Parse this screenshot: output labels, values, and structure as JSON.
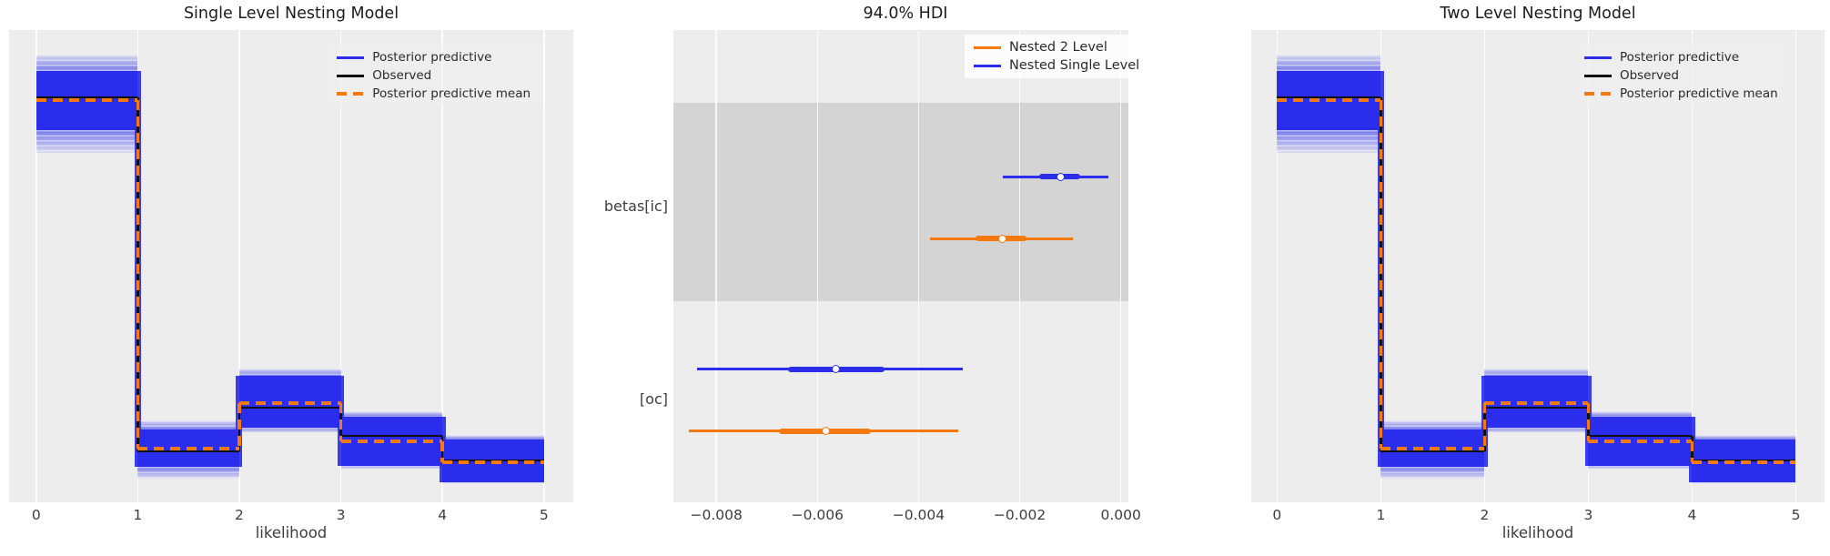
{
  "colors": {
    "posterior_blue": "#2a2eec",
    "mean_orange": "#f5790f",
    "observed_black": "#0f0f0f",
    "axes_bg": "#ededed",
    "shade_band": "#d4d4d4",
    "gridline": "#ffffff"
  },
  "chart_data": [
    {
      "type": "area",
      "subtype": "posterior-predictive-step-histogram",
      "title": "Single Level Nesting Model",
      "xlabel": "likelihood",
      "x_ticks": [
        "0",
        "1",
        "2",
        "3",
        "4",
        "5"
      ],
      "grid": "white-vertical",
      "legend_position": "upper-center-right",
      "legend": [
        {
          "label": "Posterior predictive",
          "style": "solid",
          "color": "#2a2eec"
        },
        {
          "label": "Observed",
          "style": "solid",
          "color": "#0f0f0f"
        },
        {
          "label": "Posterior predictive mean",
          "style": "dashed",
          "color": "#f5790f"
        }
      ],
      "y_axis": "no ticks shown; values below are fractions of axis height",
      "bins": [
        {
          "x0": 0,
          "x1": 1,
          "observed": 0.857,
          "mean": 0.852,
          "band": [
            0.788,
            0.913
          ],
          "band_light": [
            0.74,
            0.948
          ]
        },
        {
          "x0": 1,
          "x1": 2,
          "observed": 0.108,
          "mean": 0.114,
          "band": [
            0.075,
            0.154
          ],
          "band_light": [
            0.05,
            0.173
          ]
        },
        {
          "x0": 2,
          "x1": 3,
          "observed": 0.2,
          "mean": 0.21,
          "band": [
            0.158,
            0.268
          ],
          "band_light": [
            0.148,
            0.283
          ]
        },
        {
          "x0": 3,
          "x1": 4,
          "observed": 0.141,
          "mean": 0.129,
          "band": [
            0.077,
            0.181
          ],
          "band_light": [
            0.071,
            0.193
          ]
        },
        {
          "x0": 4,
          "x1": 5,
          "observed": 0.089,
          "mean": 0.085,
          "band": [
            0.042,
            0.133
          ],
          "band_light": [
            0.04,
            0.143
          ]
        }
      ]
    },
    {
      "type": "forest",
      "title": "94.0% HDI",
      "x_ticks": [
        "−0.008",
        "−0.006",
        "−0.004",
        "−0.002",
        "0.000"
      ],
      "x_tick_values": [
        -0.008,
        -0.006,
        -0.004,
        -0.002,
        0.0
      ],
      "xlim": [
        -0.00885,
        0.00015
      ],
      "grid": "white-vertical",
      "legend_position": "upper-right",
      "legend": [
        {
          "label": "Nested 2 Level",
          "color": "#f5790f"
        },
        {
          "label": "Nested Single Level",
          "color": "#2a2eec"
        }
      ],
      "rows": [
        {
          "label": "betas[ic]",
          "shaded": true,
          "intervals": [
            {
              "series": "Nested Single Level",
              "color": "#2a2eec",
              "hdi": [
                -0.00234,
                -0.00025
              ],
              "quartile": [
                -0.00162,
                -0.00081
              ],
              "median": -0.00119
            },
            {
              "series": "Nested 2 Level",
              "color": "#f5790f",
              "hdi": [
                -0.00378,
                -0.00094
              ],
              "quartile": [
                -0.00288,
                -0.00187
              ],
              "median": -0.00234
            }
          ]
        },
        {
          "label": "[oc]",
          "shaded": false,
          "intervals": [
            {
              "series": "Nested Single Level",
              "color": "#2a2eec",
              "hdi": [
                -0.00838,
                -0.00313
              ],
              "quartile": [
                -0.00658,
                -0.00468
              ],
              "median": -0.00564
            },
            {
              "series": "Nested 2 Level",
              "color": "#f5790f",
              "hdi": [
                -0.00854,
                -0.00322
              ],
              "quartile": [
                -0.00676,
                -0.00494
              ],
              "median": -0.00584
            }
          ]
        }
      ]
    },
    {
      "type": "area",
      "subtype": "posterior-predictive-step-histogram",
      "title": "Two Level Nesting Model",
      "xlabel": "likelihood",
      "x_ticks": [
        "0",
        "1",
        "2",
        "3",
        "4",
        "5"
      ],
      "grid": "white-vertical",
      "legend_position": "upper-center-right",
      "legend": [
        {
          "label": "Posterior predictive",
          "style": "solid",
          "color": "#2a2eec"
        },
        {
          "label": "Observed",
          "style": "solid",
          "color": "#0f0f0f"
        },
        {
          "label": "Posterior predictive mean",
          "style": "dashed",
          "color": "#f5790f"
        }
      ],
      "y_axis": "no ticks shown; values below are fractions of axis height",
      "bins": [
        {
          "x0": 0,
          "x1": 1,
          "observed": 0.857,
          "mean": 0.852,
          "band": [
            0.788,
            0.913
          ],
          "band_light": [
            0.74,
            0.948
          ]
        },
        {
          "x0": 1,
          "x1": 2,
          "observed": 0.108,
          "mean": 0.114,
          "band": [
            0.075,
            0.154
          ],
          "band_light": [
            0.05,
            0.173
          ]
        },
        {
          "x0": 2,
          "x1": 3,
          "observed": 0.2,
          "mean": 0.21,
          "band": [
            0.158,
            0.268
          ],
          "band_light": [
            0.148,
            0.283
          ]
        },
        {
          "x0": 3,
          "x1": 4,
          "observed": 0.141,
          "mean": 0.129,
          "band": [
            0.077,
            0.181
          ],
          "band_light": [
            0.071,
            0.193
          ]
        },
        {
          "x0": 4,
          "x1": 5,
          "observed": 0.089,
          "mean": 0.085,
          "band": [
            0.042,
            0.133
          ],
          "band_light": [
            0.04,
            0.143
          ]
        }
      ]
    }
  ]
}
